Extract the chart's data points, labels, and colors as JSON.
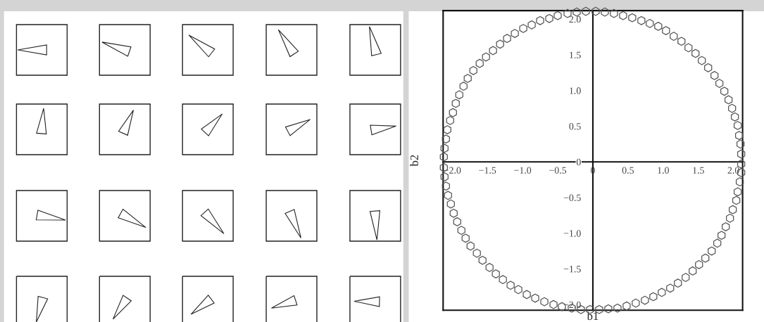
{
  "chart_data": {
    "type": "scatter",
    "xlabel": "b1",
    "ylabel": "b2",
    "color": "#555555",
    "xlim": [
      -2.13,
      2.13
    ],
    "ylim": [
      -2.08,
      2.12
    ],
    "xticks": [
      {
        "value": -2.0,
        "label": "−2.0"
      },
      {
        "value": -1.5,
        "label": "−1.5"
      },
      {
        "value": -1.0,
        "label": "−1.0"
      },
      {
        "value": -0.5,
        "label": "−0.5"
      },
      0,
      0.5,
      {
        "value": 1,
        "label": "1.0"
      },
      1.5,
      {
        "value": 2,
        "label": "2.0"
      }
    ],
    "yticks": [
      {
        "value": -2.0,
        "label": "−2.0"
      },
      {
        "value": -1.5,
        "label": "−1.5"
      },
      {
        "value": -1.0,
        "label": "−1.0"
      },
      {
        "value": -0.5,
        "label": "−0.5"
      },
      0,
      0.5,
      {
        "value": 1,
        "label": "1.0"
      },
      1.5,
      {
        "value": 2,
        "label": "2.0"
      }
    ],
    "x": [
      -2.12,
      -2.11,
      -2.09,
      -2.07,
      -2.03,
      -1.99,
      -1.95,
      -1.9,
      -1.84,
      -1.78,
      -1.7,
      -1.61,
      -1.52,
      -1.42,
      -1.32,
      -1.22,
      -1.11,
      -0.99,
      -0.87,
      -0.75,
      -0.62,
      -0.5,
      -0.36,
      -0.23,
      -0.1,
      0.04,
      0.17,
      0.3,
      0.43,
      0.56,
      0.69,
      0.81,
      0.93,
      1.04,
      1.15,
      1.26,
      1.36,
      1.46,
      1.55,
      1.64,
      1.73,
      1.8,
      1.87,
      1.93,
      1.98,
      2.02,
      2.06,
      2.08,
      2.1,
      2.11,
      2.11,
      2.11,
      2.09,
      2.06,
      2.04,
      1.99,
      1.95,
      1.89,
      1.83,
      1.77,
      1.69,
      1.6,
      1.51,
      1.42,
      1.32,
      1.21,
      1.1,
      0.98,
      0.86,
      0.74,
      0.61,
      0.48,
      0.35,
      0.22,
      0.09,
      -0.04,
      -0.17,
      -0.3,
      -0.44,
      -0.56,
      -0.69,
      -0.82,
      -0.94,
      -1.06,
      -1.17,
      -1.28,
      -1.38,
      -1.47,
      -1.57,
      -1.65,
      -1.74,
      -1.81,
      -1.87,
      -1.93,
      -1.98,
      -2.02,
      -2.06,
      -2.09,
      -2.11,
      -2.12
    ],
    "values": [
      0.07,
      0.19,
      0.32,
      0.45,
      0.58,
      0.69,
      0.82,
      0.94,
      1.06,
      1.17,
      1.28,
      1.38,
      1.47,
      1.56,
      1.65,
      1.73,
      1.8,
      1.87,
      1.92,
      1.98,
      2.01,
      2.05,
      2.08,
      2.1,
      2.11,
      2.11,
      2.1,
      2.08,
      2.05,
      2.02,
      1.98,
      1.94,
      1.9,
      1.84,
      1.76,
      1.69,
      1.6,
      1.52,
      1.42,
      1.32,
      1.21,
      1.1,
      0.99,
      0.87,
      0.75,
      0.63,
      0.51,
      0.37,
      0.25,
      0.11,
      -0.03,
      -0.15,
      -0.28,
      -0.42,
      -0.54,
      -0.67,
      -0.79,
      -0.91,
      -1.03,
      -1.14,
      -1.25,
      -1.35,
      -1.44,
      -1.53,
      -1.62,
      -1.7,
      -1.77,
      -1.83,
      -1.89,
      -1.94,
      -1.98,
      -2.02,
      -2.05,
      -2.06,
      -2.07,
      -2.07,
      -2.07,
      -2.05,
      -2.03,
      -2.0,
      -1.96,
      -1.91,
      -1.86,
      -1.79,
      -1.73,
      -1.65,
      -1.57,
      -1.48,
      -1.38,
      -1.28,
      -1.18,
      -1.07,
      -0.96,
      -0.84,
      -0.72,
      -0.59,
      -0.47,
      -0.34,
      -0.21,
      -0.08
    ]
  }
}
